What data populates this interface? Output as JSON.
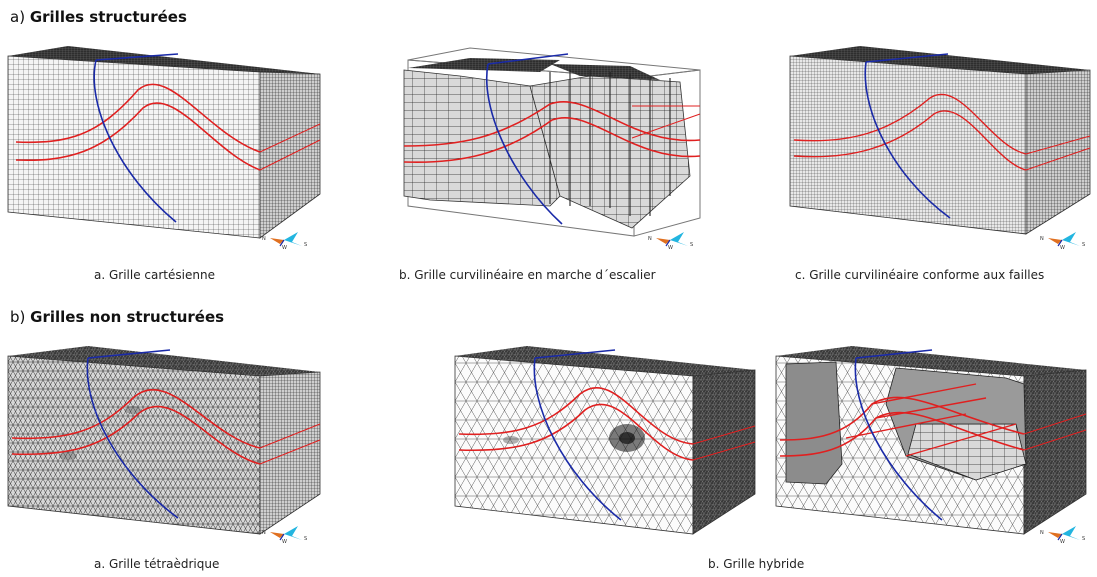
{
  "section_a": {
    "prefix": "a)",
    "title": "Grilles structurées"
  },
  "section_b": {
    "prefix": "b)",
    "title": "Grilles non structurées"
  },
  "captions": {
    "a1": "a. Grille cartésienne",
    "a2": "b. Grille curvilinéaire en marche d´escalier",
    "a3": "c. Grille curvilinéaire conforme aux failles",
    "b1": "a. Grille tétraèdrique",
    "b2": "b. Grille hybride"
  },
  "compass": {
    "n": "N",
    "w": "W",
    "s": "S"
  },
  "colors": {
    "fault": "#1a2aa8",
    "horizon": "#e02020",
    "grid": "#222222",
    "face": "#f2f2f2",
    "face_dark": "#3a3a3a"
  }
}
